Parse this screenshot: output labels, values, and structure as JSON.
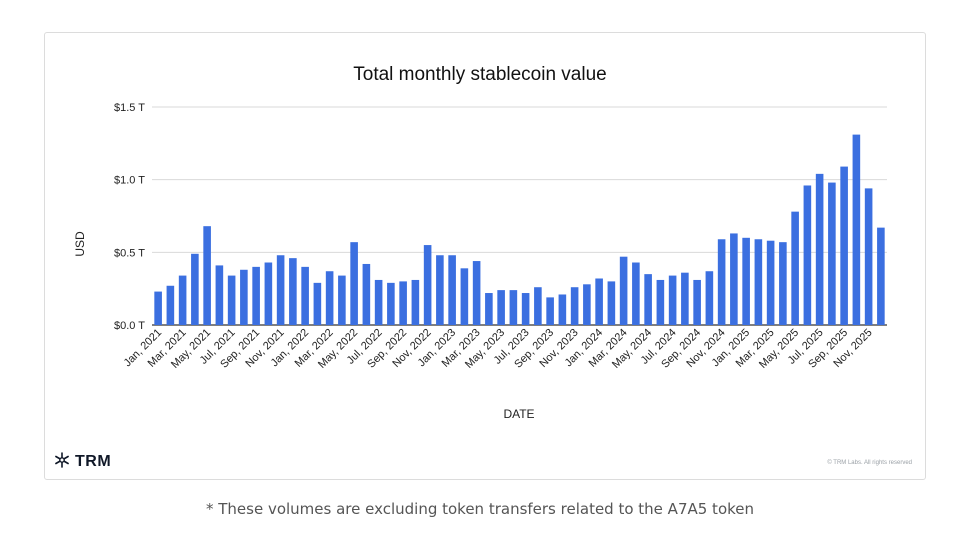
{
  "chart_data": {
    "type": "bar",
    "title": "Total monthly stablecoin value",
    "xlabel": "DATE",
    "ylabel": "USD",
    "unit": "trillion USD",
    "ylim": [
      0,
      1.5
    ],
    "yticks": [
      0,
      0.5,
      1.0,
      1.5
    ],
    "ytick_labels": [
      "$0.0 T",
      "$0.5 T",
      "$1.0 T",
      "$1.5 T"
    ],
    "grid": true,
    "bar_color": "#3b6fe0",
    "categories": [
      "Jan, 2021",
      "Feb, 2021",
      "Mar, 2021",
      "Apr, 2021",
      "May, 2021",
      "Jun, 2021",
      "Jul, 2021",
      "Aug, 2021",
      "Sep, 2021",
      "Oct, 2021",
      "Nov, 2021",
      "Dec, 2021",
      "Jan, 2022",
      "Feb, 2022",
      "Mar, 2022",
      "Apr, 2022",
      "May, 2022",
      "Jun, 2022",
      "Jul, 2022",
      "Aug, 2022",
      "Sep, 2022",
      "Oct, 2022",
      "Nov, 2022",
      "Dec, 2022",
      "Jan, 2023",
      "Feb, 2023",
      "Mar, 2023",
      "Apr, 2023",
      "May, 2023",
      "Jun, 2023",
      "Jul, 2023",
      "Aug, 2023",
      "Sep, 2023",
      "Oct, 2023",
      "Nov, 2023",
      "Dec, 2023",
      "Jan, 2024",
      "Feb, 2024",
      "Mar, 2024",
      "Apr, 2024",
      "May, 2024",
      "Jun, 2024",
      "Jul, 2024",
      "Aug, 2024",
      "Sep, 2024",
      "Oct, 2024",
      "Nov, 2024",
      "Dec, 2024",
      "Jan, 2025",
      "Feb, 2025",
      "Mar, 2025",
      "Apr, 2025",
      "May, 2025",
      "Jun, 2025",
      "Jul, 2025",
      "Aug, 2025",
      "Sep, 2025",
      "Oct, 2025",
      "Nov, 2025",
      "Dec, 2025"
    ],
    "values": [
      0.23,
      0.27,
      0.34,
      0.49,
      0.68,
      0.41,
      0.34,
      0.38,
      0.4,
      0.43,
      0.48,
      0.46,
      0.4,
      0.29,
      0.37,
      0.34,
      0.57,
      0.42,
      0.31,
      0.29,
      0.3,
      0.31,
      0.55,
      0.48,
      0.48,
      0.39,
      0.44,
      0.22,
      0.24,
      0.24,
      0.22,
      0.26,
      0.19,
      0.21,
      0.26,
      0.28,
      0.32,
      0.3,
      0.47,
      0.43,
      0.35,
      0.31,
      0.34,
      0.36,
      0.31,
      0.37,
      0.59,
      0.63,
      0.6,
      0.59,
      0.58,
      0.57,
      0.78,
      0.96,
      1.04,
      0.98,
      1.09,
      1.31,
      0.94,
      0.67
    ],
    "xtick_labels_shown": [
      "Jan, 2021",
      "Mar, 2021",
      "May, 2021",
      "Jul, 2021",
      "Sep, 2021",
      "Nov, 2021",
      "Jan, 2022",
      "Mar, 2022",
      "May, 2022",
      "Jul, 2022",
      "Sep, 2022",
      "Nov, 2022",
      "Jan, 2023",
      "Mar, 2023",
      "May, 2023",
      "Jul, 2023",
      "Sep, 2023",
      "Nov, 2023",
      "Jan, 2024",
      "Mar, 2024",
      "May, 2024",
      "Jul, 2024",
      "Sep, 2024",
      "Nov, 2024",
      "Jan, 2025",
      "Mar, 2025",
      "May, 2025",
      "Jul, 2025",
      "Sep, 2025",
      "Nov, 2025"
    ]
  },
  "brand": {
    "logo_text": "TRM",
    "logo_icon": "trm-snowflake-icon"
  },
  "copyright": "© TRM Labs. All rights reserved",
  "footnote": "* These volumes are excluding token transfers related to the A7A5 token"
}
